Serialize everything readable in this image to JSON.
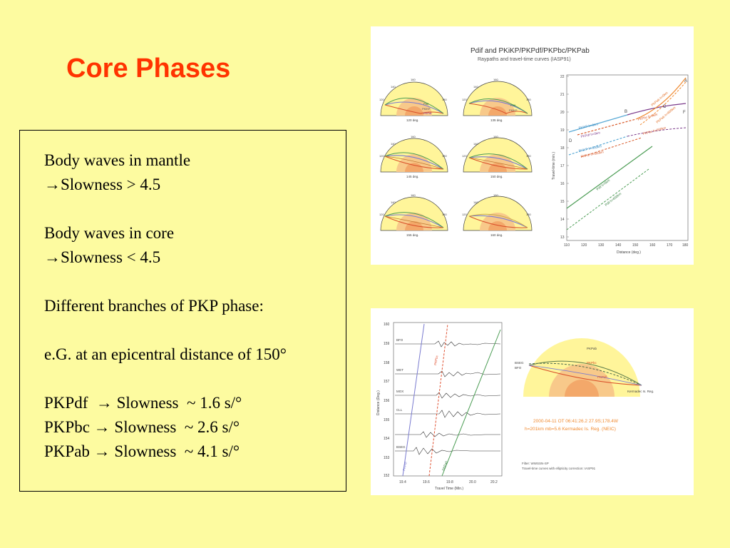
{
  "slide": {
    "title": "Core Phases"
  },
  "textbox": {
    "lines": [
      "Body waves in mantle",
      "→Slowness > 4.5",
      "",
      "Body waves in core",
      "→Slowness < 4.5",
      "",
      "Different branches of PKP phase:",
      "",
      "e.G. at an epicentral distance of 150°",
      "",
      "PKPdf  → Slowness  ~ 1.6 s/°",
      "PKPbc → Slowness  ~ 2.6 s/°",
      "PKPab → Slowness  ~ 4.1 s/°"
    ]
  },
  "figure1": {
    "title": "Pdif and PKiKP/PKPdf/PKPbc/PKPab",
    "subtitle": "Raypaths and travel-time curves (IASP91)",
    "panels": [
      "120 deg.",
      "135 deg.",
      "145 deg.",
      "150 deg.",
      "155 deg.",
      "160 deg."
    ],
    "ticks": [
      "140",
      "160",
      "120",
      "180"
    ],
    "panel_labels": [
      "Pdif",
      "PKiKP",
      "PKPdf",
      "PKPbc",
      "PKPab"
    ],
    "chart": {
      "ylabel": "Travel-time (min.)",
      "xlabel": "Distance (deg.)",
      "yticks": [
        "22",
        "21",
        "20",
        "19",
        "18",
        "17",
        "16",
        "15",
        "14",
        "13"
      ],
      "xticks": [
        "110",
        "120",
        "130",
        "140",
        "150",
        "160",
        "170",
        "180"
      ],
      "points": [
        "A",
        "B",
        "C",
        "D",
        "F"
      ],
      "curve_labels": [
        "PKPab h=0km",
        "PKPab h=600km",
        "PKPbc h=0km",
        "PKPbc h=600km",
        "PKiKP h=0km",
        "PKPdf h=0km",
        "PKiKP h=600km",
        "PKPdf h=600km",
        "Pdif h=0km",
        "Pdif h=600km"
      ]
    }
  },
  "figure2": {
    "ylabel": "Distance (Deg.)",
    "xlabel": "Travel Time (Min.)",
    "yticks": [
      "160",
      "159",
      "158",
      "157",
      "156",
      "155",
      "154",
      "153",
      "152"
    ],
    "xticks": [
      "19.4",
      "19.6",
      "19.8",
      "20.0",
      "20.2"
    ],
    "stations": [
      "BFO",
      "WET",
      "MOX",
      "CLL",
      "BSEG"
    ],
    "phase_labels": [
      "PKPdf",
      "PKPbc",
      "PKPab"
    ],
    "ray_labels": {
      "left_top": "BSEG",
      "left_bottom": "BFO",
      "right": "Kermadec Is. Reg."
    },
    "event_line1": "2000-04-11  OT 06:41:26.2  27.9S;178.4W",
    "event_line2": "h=201km mb=5.6 Kermadec Is. Reg. (NEIC)",
    "filter_line1": "Filter: WWSSN-SP",
    "filter_line2": "Travel-time curves with ellipticity correction: IASP91"
  }
}
